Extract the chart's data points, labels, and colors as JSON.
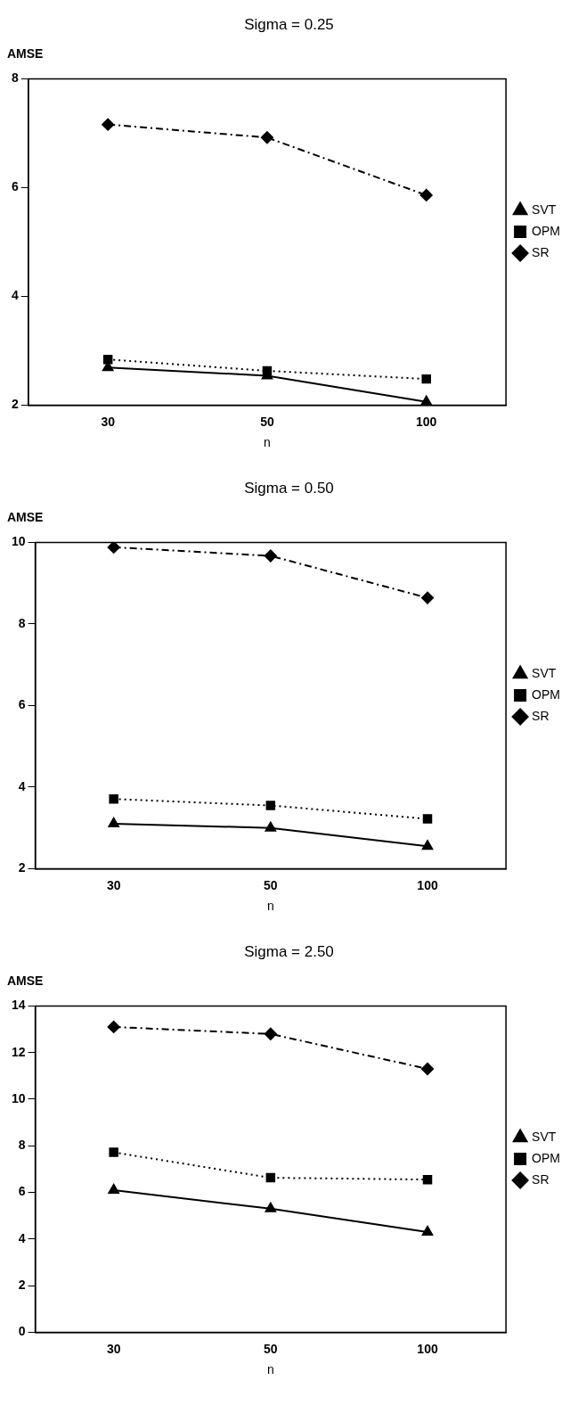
{
  "chart_data": [
    {
      "type": "line",
      "title": "Sigma = 0.25",
      "xlabel": "n",
      "ylabel": "AMSE",
      "categories": [
        "30",
        "50",
        "100"
      ],
      "ylim": [
        2,
        8
      ],
      "yticks": [
        2,
        4,
        6,
        8
      ],
      "grid": false,
      "legend": "right",
      "series": [
        {
          "name": "SVT",
          "color": "#000000",
          "marker": "triangle",
          "line_style": "solid",
          "values": [
            2.69,
            2.54,
            2.06
          ]
        },
        {
          "name": "OPM",
          "color": "#000000",
          "marker": "square",
          "line_style": "dotted",
          "values": [
            2.84,
            2.63,
            2.48
          ]
        },
        {
          "name": "SR",
          "color": "#000000",
          "marker": "diamond",
          "line_style": "dashed",
          "values": [
            7.16,
            6.92,
            5.86
          ]
        }
      ]
    },
    {
      "type": "line",
      "title": "Sigma = 0.50",
      "xlabel": "n",
      "ylabel": "AMSE",
      "categories": [
        "30",
        "50",
        "100"
      ],
      "ylim": [
        2,
        10
      ],
      "yticks": [
        2,
        4,
        6,
        8,
        10
      ],
      "grid": false,
      "legend": "right",
      "series": [
        {
          "name": "SVT",
          "color": "#000000",
          "marker": "triangle",
          "line_style": "solid",
          "values": [
            3.1,
            3.0,
            2.55
          ]
        },
        {
          "name": "OPM",
          "color": "#000000",
          "marker": "square",
          "line_style": "dotted",
          "values": [
            3.71,
            3.55,
            3.22
          ]
        },
        {
          "name": "SR",
          "color": "#000000",
          "marker": "diamond",
          "line_style": "dashed",
          "values": [
            9.88,
            9.67,
            8.64
          ]
        }
      ]
    },
    {
      "type": "line",
      "title": "Sigma = 2.50",
      "xlabel": "n",
      "ylabel": "AMSE",
      "categories": [
        "30",
        "50",
        "100"
      ],
      "ylim": [
        0,
        14
      ],
      "yticks": [
        0,
        2,
        4,
        6,
        8,
        10,
        12,
        14
      ],
      "grid": false,
      "legend": "right",
      "series": [
        {
          "name": "SVT",
          "color": "#000000",
          "marker": "triangle",
          "line_style": "solid",
          "values": [
            6.1,
            5.3,
            4.3
          ]
        },
        {
          "name": "OPM",
          "color": "#000000",
          "marker": "square",
          "line_style": "dotted",
          "values": [
            7.72,
            6.63,
            6.55
          ]
        },
        {
          "name": "SR",
          "color": "#000000",
          "marker": "diamond",
          "line_style": "dashed",
          "values": [
            13.1,
            12.8,
            11.3
          ]
        }
      ]
    }
  ]
}
